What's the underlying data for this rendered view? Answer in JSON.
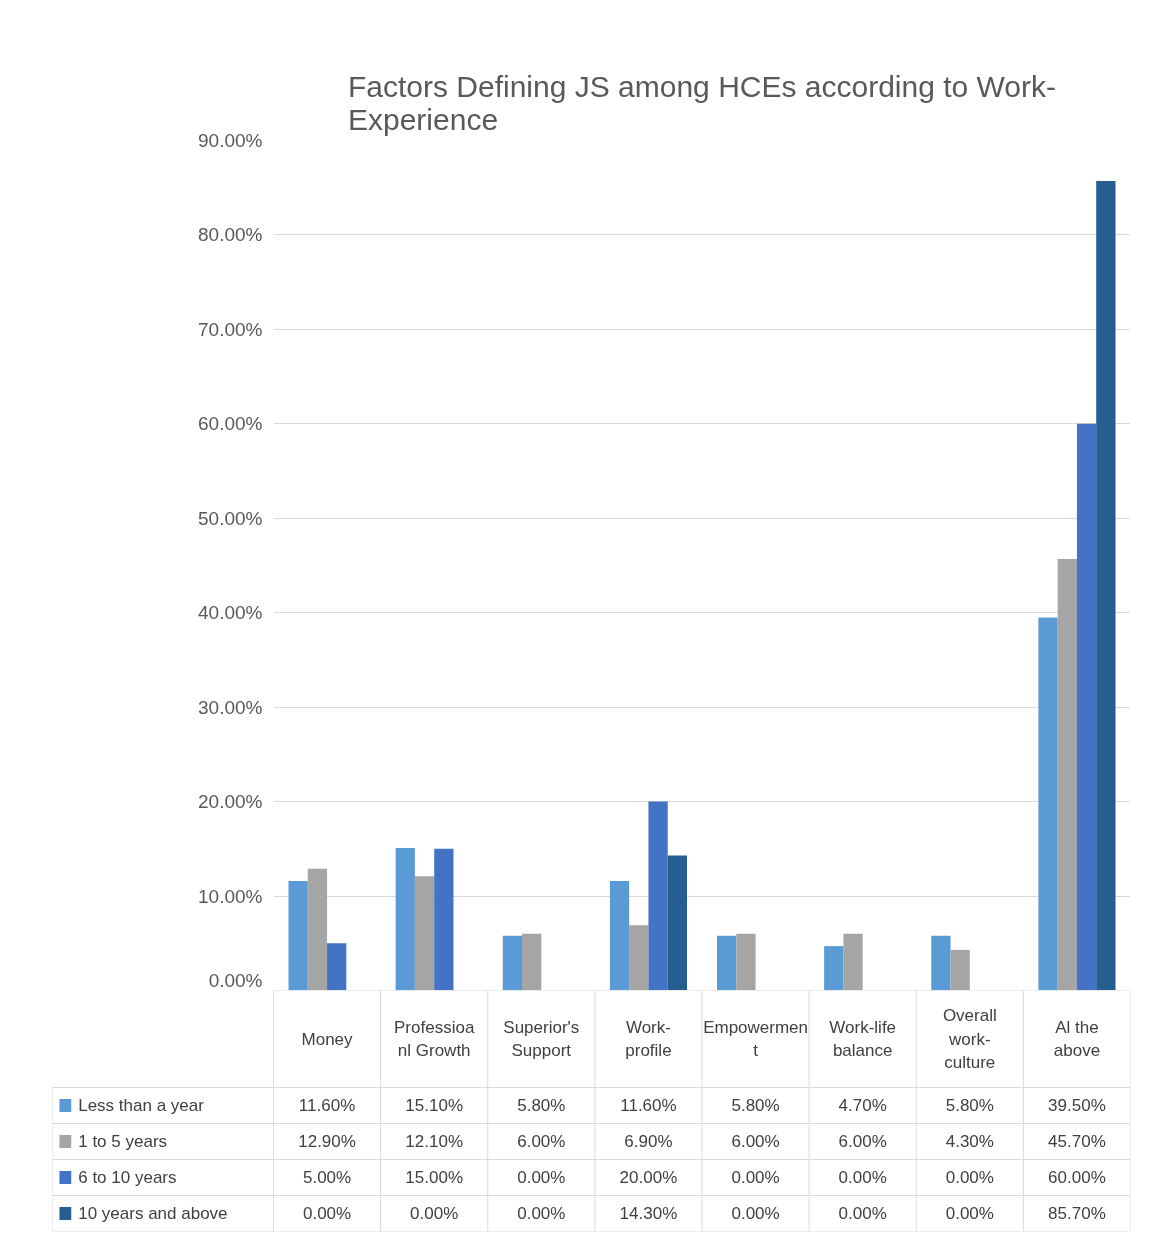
{
  "chart_data": {
    "type": "bar",
    "title": "Factors Defining JS among HCEs according to Work-Experience",
    "categories": [
      "Money",
      "Professioanl Growth",
      "Superior's Support",
      "Work-profile",
      "Empowerment",
      "Work-life balance",
      "Overall work-culture",
      "Al the above"
    ],
    "series": [
      {
        "name": "Less than a year",
        "color": "#5b9bd5",
        "values": [
          11.6,
          15.1,
          5.8,
          11.6,
          5.8,
          4.7,
          5.8,
          39.5
        ],
        "value_labels": [
          "11.60%",
          "15.10%",
          "5.80%",
          "11.60%",
          "5.80%",
          "4.70%",
          "5.80%",
          "39.50%"
        ]
      },
      {
        "name": "1 to 5 years",
        "color": "#a5a5a5",
        "values": [
          12.9,
          12.1,
          6.0,
          6.9,
          6.0,
          6.0,
          4.3,
          45.7
        ],
        "value_labels": [
          "12.90%",
          "12.10%",
          "6.00%",
          "6.90%",
          "6.00%",
          "6.00%",
          "4.30%",
          "45.70%"
        ]
      },
      {
        "name": "6 to 10 years",
        "color": "#4472c4",
        "values": [
          5.0,
          15.0,
          0.0,
          20.0,
          0.0,
          0.0,
          0.0,
          60.0
        ],
        "value_labels": [
          "5.00%",
          "15.00%",
          "0.00%",
          "20.00%",
          "0.00%",
          "0.00%",
          "0.00%",
          "60.00%"
        ]
      },
      {
        "name": "10 years and above",
        "color": "#255e91",
        "values": [
          0.0,
          0.0,
          0.0,
          14.3,
          0.0,
          0.0,
          0.0,
          85.7
        ],
        "value_labels": [
          "0.00%",
          "0.00%",
          "0.00%",
          "14.30%",
          "0.00%",
          "0.00%",
          "0.00%",
          "85.70%"
        ]
      }
    ],
    "ylim": [
      0,
      90
    ],
    "yticks": [
      {
        "value": 0,
        "label": "0.00%"
      },
      {
        "value": 10,
        "label": "10.00%"
      },
      {
        "value": 20,
        "label": "20.00%"
      },
      {
        "value": 30,
        "label": "30.00%"
      },
      {
        "value": 40,
        "label": "40.00%"
      },
      {
        "value": 50,
        "label": "50.00%"
      },
      {
        "value": 60,
        "label": "60.00%"
      },
      {
        "value": 70,
        "label": "70.00%"
      },
      {
        "value": 80,
        "label": "80.00%"
      },
      {
        "value": 90,
        "label": "90.00%"
      }
    ],
    "grid": "y",
    "legend": "bottom"
  }
}
